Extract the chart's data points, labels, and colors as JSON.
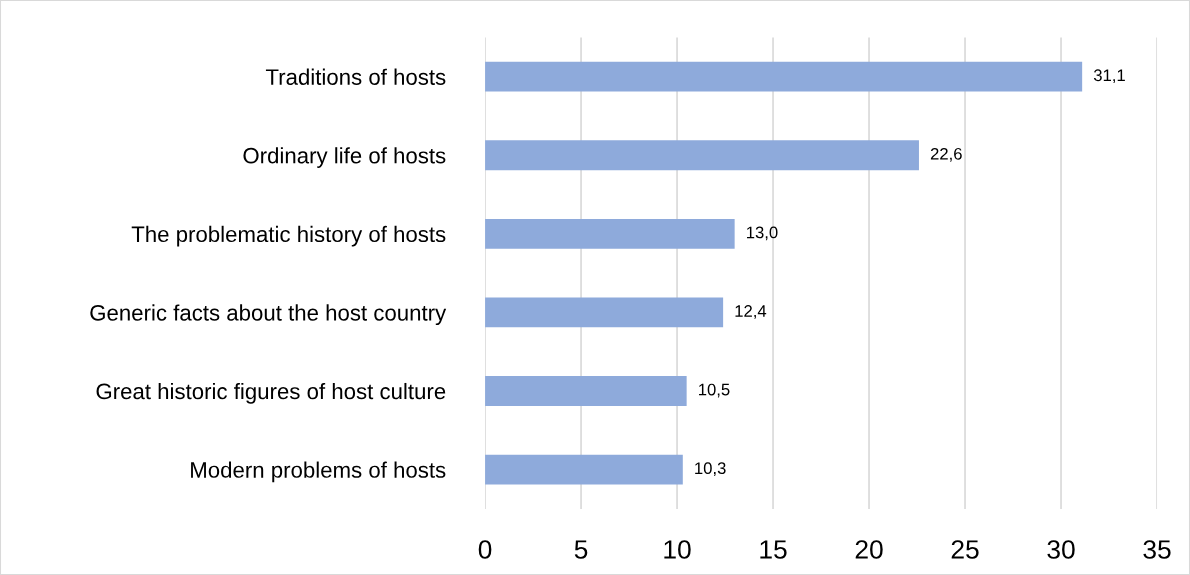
{
  "chart_data": {
    "type": "bar",
    "orientation": "horizontal",
    "categories": [
      "Traditions of hosts",
      "Ordinary life of hosts",
      "The problematic history of hosts",
      "Generic facts about the host country",
      "Great historic figures of host culture",
      "Modern problems of hosts"
    ],
    "values": [
      31.1,
      22.6,
      13.0,
      12.4,
      10.5,
      10.3
    ],
    "value_labels": [
      "31,1",
      "22,6",
      "13,0",
      "12,4",
      "10,5",
      "10,3"
    ],
    "color": "#8eaadb",
    "xlim": [
      0,
      35
    ],
    "xticks": [
      0,
      5,
      10,
      15,
      20,
      25,
      30,
      35
    ],
    "grid": "x",
    "legend": false
  }
}
